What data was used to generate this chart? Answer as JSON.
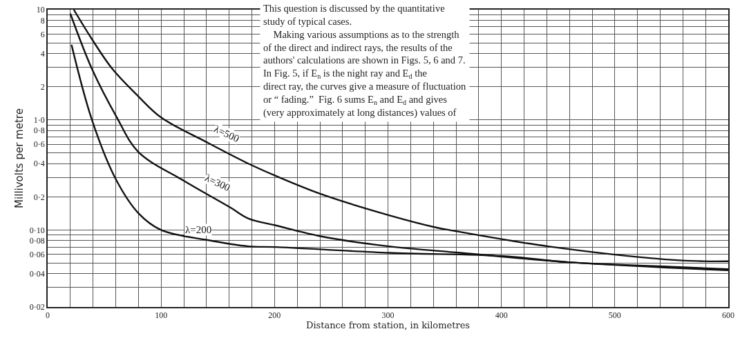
{
  "chart_data": {
    "type": "line",
    "xlabel": "Distance from station, in kilometres",
    "ylabel": "Millivolts per metre",
    "log": "y",
    "grid": true,
    "marker": "none",
    "line_style": "solid",
    "xlim": [
      0,
      600
    ],
    "ylim": [
      0.02,
      10
    ],
    "xticks": [
      0,
      {
        "value": 20,
        "label": null
      },
      {
        "value": 40,
        "label": null
      },
      {
        "value": 60,
        "label": null
      },
      {
        "value": 80,
        "label": null
      },
      100,
      {
        "value": 120,
        "label": null
      },
      {
        "value": 140,
        "label": null
      },
      {
        "value": 160,
        "label": null
      },
      {
        "value": 180,
        "label": null
      },
      200,
      {
        "value": 220,
        "label": null
      },
      {
        "value": 240,
        "label": null
      },
      {
        "value": 260,
        "label": null
      },
      {
        "value": 280,
        "label": null
      },
      300,
      {
        "value": 320,
        "label": null
      },
      {
        "value": 340,
        "label": null
      },
      {
        "value": 360,
        "label": null
      },
      {
        "value": 380,
        "label": null
      },
      400,
      {
        "value": 420,
        "label": null
      },
      {
        "value": 440,
        "label": null
      },
      {
        "value": 460,
        "label": null
      },
      {
        "value": 480,
        "label": null
      },
      500,
      {
        "value": 520,
        "label": null
      },
      {
        "value": 540,
        "label": null
      },
      {
        "value": 560,
        "label": null
      },
      {
        "value": 580,
        "label": null
      },
      600
    ],
    "yticks": [
      {
        "value": 0.02,
        "label": "0·02"
      },
      {
        "value": 0.03,
        "label": null
      },
      {
        "value": 0.04,
        "label": "0·04"
      },
      {
        "value": 0.05,
        "label": null
      },
      {
        "value": 0.06,
        "label": "0·06"
      },
      {
        "value": 0.07,
        "label": null
      },
      {
        "value": 0.08,
        "label": "0·08"
      },
      {
        "value": 0.09,
        "label": null
      },
      {
        "value": 0.1,
        "label": "0·10"
      },
      {
        "value": 0.2,
        "label": "0·2"
      },
      {
        "value": 0.3,
        "label": null
      },
      {
        "value": 0.4,
        "label": "0·4"
      },
      {
        "value": 0.5,
        "label": null
      },
      {
        "value": 0.6,
        "label": "0·6"
      },
      {
        "value": 0.7,
        "label": null
      },
      {
        "value": 0.8,
        "label": "0·8"
      },
      {
        "value": 0.9,
        "label": null
      },
      {
        "value": 1,
        "label": "1·0"
      },
      2,
      {
        "value": 3,
        "label": null
      },
      4,
      {
        "value": 5,
        "label": null
      },
      6,
      {
        "value": 7,
        "label": null
      },
      8,
      {
        "value": 9,
        "label": null
      },
      10
    ],
    "series": [
      {
        "color": "#111111",
        "x": [
          23,
          39,
          57,
          80,
          100,
          141,
          177,
          201,
          242,
          301,
          343,
          354,
          441,
          557,
          600
        ],
        "values": [
          10,
          5.4,
          2.9,
          1.63,
          1.05,
          0.62,
          0.4,
          0.31,
          0.21,
          0.136,
          0.105,
          0.1,
          0.071,
          0.053,
          0.052
        ]
      },
      {
        "color": "#111111",
        "x": [
          20,
          39,
          61,
          80,
          120,
          161,
          177,
          201,
          242,
          301,
          364,
          459,
          557,
          600
        ],
        "values": [
          9.2,
          2.9,
          1.05,
          0.51,
          0.28,
          0.16,
          0.127,
          0.11,
          0.087,
          0.071,
          0.062,
          0.051,
          0.045,
          0.043
        ]
      },
      {
        "color": "#111111",
        "x": [
          21,
          39,
          60,
          80,
          100,
          141,
          177,
          201,
          301,
          401,
          459,
          557,
          600
        ],
        "values": [
          4.8,
          1.0,
          0.29,
          0.142,
          0.1,
          0.081,
          0.071,
          0.07,
          0.062,
          0.058,
          0.051,
          0.046,
          0.044
        ]
      }
    ],
    "annotations": [
      {
        "text": "λ=500",
        "x": 158,
        "y": 0.75
      },
      {
        "text": "λ=300",
        "x": 150,
        "y": 0.27
      },
      {
        "text": "λ=200",
        "x": 133,
        "y": 0.1
      },
      "This question is discussed by the quantitative\nstudy of typical cases.\n    Making various assumptions as to the strength\nof the direct and indirect rays, the results of the\nauthors' calculations are shown in Figs. 5, 6 and 7.\nIn Fig. 5, if E$_{n}$ is the night ray and E$_{d}$ the\ndirect ray, the curves give a measure of fluctuation\nor “ fading.”  Fig. 6 sums E$_{n}$ and E$_{d}$ and gives\n(very approximately at long distances) values of"
    ]
  }
}
